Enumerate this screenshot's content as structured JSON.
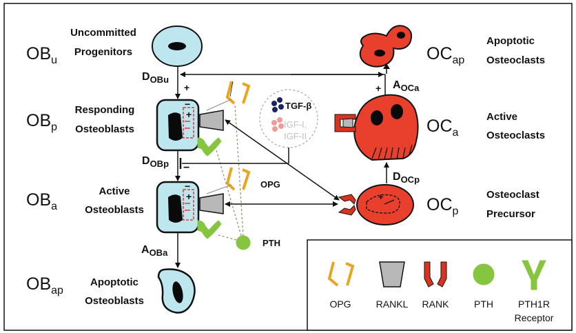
{
  "stages": {
    "ob_u": {
      "symbol": "OB",
      "sub": "u",
      "line1": "Uncommitted",
      "line2": "Progenitors"
    },
    "ob_p": {
      "symbol": "OB",
      "sub": "p",
      "line1": "Responding",
      "line2": "Osteoblasts"
    },
    "ob_a": {
      "symbol": "OB",
      "sub": "a",
      "line1": "Active",
      "line2": "Osteoblasts"
    },
    "ob_ap": {
      "symbol": "OB",
      "sub": "ap",
      "line1": "Apoptotic",
      "line2": "Osteoblasts"
    },
    "oc_ap": {
      "symbol": "OC",
      "sub": "ap",
      "line1": "Apoptotic",
      "line2": "Osteoclasts"
    },
    "oc_a": {
      "symbol": "OC",
      "sub": "a",
      "line1": "Active",
      "line2": "Osteoclasts"
    },
    "oc_p": {
      "symbol": "OC",
      "sub": "p",
      "line1": "Osteoclast",
      "line2": "Precursor"
    }
  },
  "rates": {
    "d_obu": {
      "main": "D",
      "sub": "OBu"
    },
    "d_obp": {
      "main": "D",
      "sub": "OBp"
    },
    "a_oba": {
      "main": "A",
      "sub": "OBa"
    },
    "a_oca": {
      "main": "A",
      "sub": "OCa"
    },
    "d_ocp": {
      "main": "D",
      "sub": "OCp"
    }
  },
  "signs": {
    "plus": "+",
    "minus": "−"
  },
  "factors": {
    "tgf": "TGF-β",
    "igf1": "IGF-I,",
    "igf2": "IGF-II"
  },
  "labels": {
    "opg": "OPG",
    "pth": "PTH"
  },
  "legend": {
    "opg": "OPG",
    "rankl": "RANKL",
    "rank": "RANK",
    "pth": "PTH",
    "pth1r_1": "PTH1R",
    "pth1r_2": "Receptor"
  },
  "colors": {
    "osteoblast_fill": "#bde6ee",
    "osteoclast_fill": "#e8402c",
    "nucleus": "#0a0a0a",
    "opg": "#e9a51f",
    "rankl": "#b8b8b8",
    "rank": "#d9331f",
    "pth": "#86c540",
    "pth1r": "#86c540",
    "tgf_dots": "#1c2360",
    "igf_dots": "#f29a9a",
    "igf_text": "#c0c0c0",
    "dashed_box": "#e53935"
  }
}
